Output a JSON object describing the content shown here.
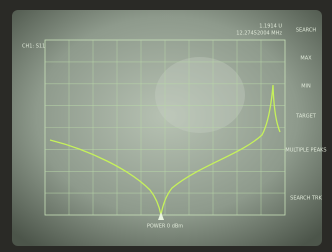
{
  "header": {
    "channel": "CH1: S11",
    "marker_value": "1.1914 U",
    "marker_freq": "12.27452004 MHz"
  },
  "softkeys": [
    "SEARCH",
    "MAX",
    "MIN",
    "TARGET",
    "MULTIPLE PEAKS",
    "SEARCH TRK"
  ],
  "footer": {
    "power": "POWER 0 dBm"
  }
}
